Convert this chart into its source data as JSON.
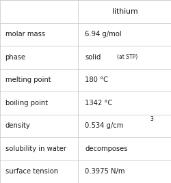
{
  "title": "lithium",
  "rows": [
    {
      "property": "molar mass",
      "value": "6.94 g/mol",
      "special": null,
      "superscript": false
    },
    {
      "property": "phase",
      "value": "solid",
      "special": "(at STP)",
      "superscript": false
    },
    {
      "property": "melting point",
      "value": "180 °C",
      "special": null,
      "superscript": false
    },
    {
      "property": "boiling point",
      "value": "1342 °C",
      "special": null,
      "superscript": false
    },
    {
      "property": "density",
      "value": "0.534 g/cm",
      "special": "3",
      "superscript": true
    },
    {
      "property": "solubility in water",
      "value": "decomposes",
      "special": null,
      "superscript": false
    },
    {
      "property": "surface tension",
      "value": "0.3975 N/m",
      "special": null,
      "superscript": false
    }
  ],
  "bg_color": "#ffffff",
  "line_color": "#cccccc",
  "text_color": "#1a1a1a",
  "title_color": "#1a1a1a",
  "col_split": 0.455,
  "property_font_size": 7.2,
  "value_font_size": 7.2,
  "title_font_size": 7.8,
  "small_font_size": 5.5
}
